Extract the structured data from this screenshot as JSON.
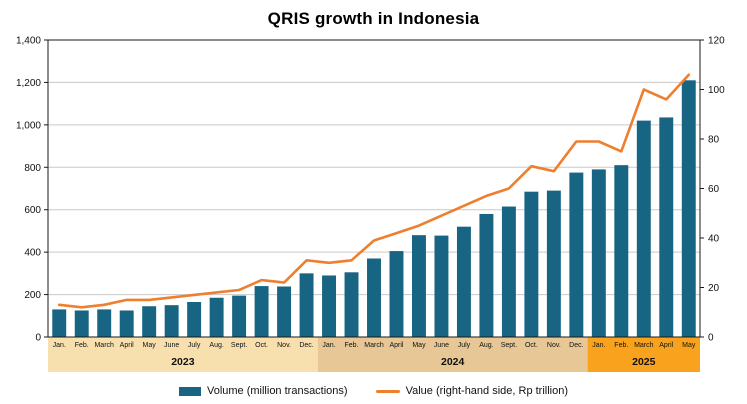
{
  "chart_data": {
    "type": "bar",
    "title": "QRIS growth in Indonesia",
    "categories": [
      "Jan.",
      "Feb.",
      "March",
      "April",
      "May",
      "June",
      "July",
      "Aug.",
      "Sept.",
      "Oct.",
      "Nov.",
      "Dec.",
      "Jan.",
      "Feb.",
      "March",
      "April",
      "May",
      "June",
      "July",
      "Aug.",
      "Sept.",
      "Oct.",
      "Nov.",
      "Dec.",
      "Jan.",
      "Feb.",
      "March",
      "April",
      "May"
    ],
    "year_groups": [
      {
        "label": "2023",
        "start": 0,
        "count": 12,
        "band_color": "#f8dfae"
      },
      {
        "label": "2024",
        "start": 12,
        "count": 12,
        "band_color": "#e6c795"
      },
      {
        "label": "2025",
        "start": 24,
        "count": 5,
        "band_color": "#f8a21e"
      }
    ],
    "series": [
      {
        "name": "Volume (million transactions)",
        "type": "bar",
        "axis": "left",
        "color": "#176483",
        "values": [
          130,
          125,
          130,
          125,
          145,
          150,
          165,
          185,
          195,
          240,
          238,
          300,
          290,
          305,
          370,
          405,
          480,
          478,
          520,
          580,
          615,
          685,
          690,
          775,
          790,
          810,
          1020,
          1035,
          1210
        ]
      },
      {
        "name": "Value (right-hand side, Rp trillion)",
        "type": "line",
        "axis": "right",
        "color": "#ee7f2f",
        "values": [
          13,
          12,
          13,
          15,
          15,
          16,
          17,
          18,
          19,
          23,
          22,
          31,
          30,
          31,
          39,
          42,
          45,
          49,
          53,
          57,
          60,
          69,
          67,
          79,
          79,
          75,
          100,
          96,
          106
        ]
      }
    ],
    "left_axis": {
      "min": 0,
      "max": 1400,
      "step": 200,
      "ticks": [
        "0",
        "200",
        "400",
        "600",
        "800",
        "1,000",
        "1,200",
        "1,400"
      ]
    },
    "right_axis": {
      "min": 0,
      "max": 120,
      "step": 20,
      "ticks": [
        "0",
        "20",
        "40",
        "60",
        "80",
        "100",
        "120"
      ]
    },
    "grid": "horizontal",
    "legend_position": "bottom"
  }
}
